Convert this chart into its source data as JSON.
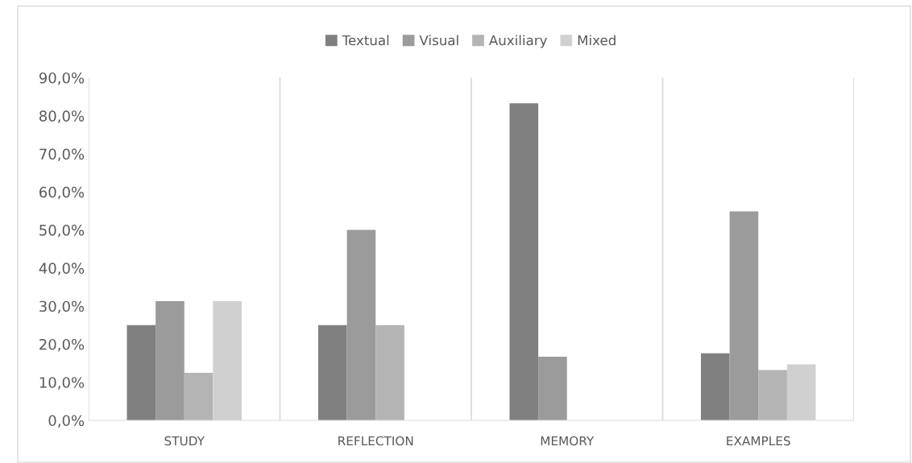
{
  "chart_data": {
    "type": "bar",
    "categories": [
      "STUDY",
      "REFLECTION",
      "MEMORY",
      "EXAMPLES"
    ],
    "series": [
      {
        "name": "Textual",
        "color": "#808080",
        "values": [
          25.0,
          25.0,
          83.3,
          17.6
        ]
      },
      {
        "name": "Visual",
        "color": "#9b9b9b",
        "values": [
          31.3,
          50.0,
          16.7,
          54.9
        ]
      },
      {
        "name": "Auxiliary",
        "color": "#b4b4b4",
        "values": [
          12.5,
          25.0,
          null,
          13.2
        ]
      },
      {
        "name": "Mixed",
        "color": "#d0d0d0",
        "values": [
          31.3,
          null,
          null,
          14.7
        ]
      }
    ],
    "ylim": [
      0,
      90
    ],
    "yticks": [
      {
        "value": 0,
        "label": "0,0%"
      },
      {
        "value": 10,
        "label": "10,0%"
      },
      {
        "value": 20,
        "label": "20,0%"
      },
      {
        "value": 30,
        "label": "30,0%"
      },
      {
        "value": 40,
        "label": "40,0%"
      },
      {
        "value": 50,
        "label": "50,0%"
      },
      {
        "value": 60,
        "label": "60,0%"
      },
      {
        "value": 70,
        "label": "70,0%"
      },
      {
        "value": 80,
        "label": "80,0%"
      },
      {
        "value": 90,
        "label": "90,0%"
      }
    ],
    "grid": "x",
    "legend": "top"
  }
}
